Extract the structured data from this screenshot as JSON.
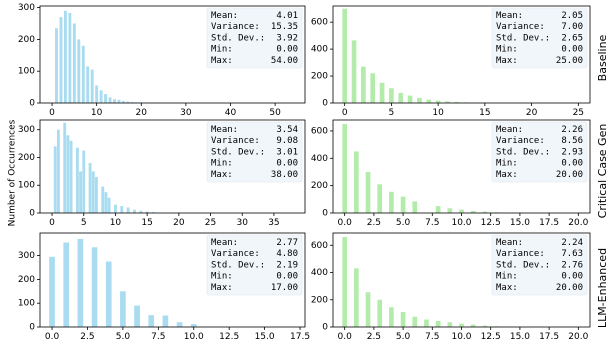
{
  "figure": {
    "ylabel": "Number of Occurrences",
    "row_titles": [
      "Baseline",
      "Critical Case Gen",
      "LLM-Enhanced"
    ],
    "colors": {
      "left": "#a9dcf0",
      "right": "#b3ecaa",
      "stats_bg": "#f1f6fb"
    },
    "stat_labels": [
      "Mean:",
      "Variance:",
      "Std. Dev.:",
      "Min:",
      "Max:"
    ]
  },
  "chart_data": [
    {
      "type": "bar",
      "row": 0,
      "col": 0,
      "xlim": [
        -2.7,
        56.7
      ],
      "ylim": [
        0,
        305
      ],
      "xticks": [
        0,
        10,
        20,
        30,
        40,
        50
      ],
      "xtick_labels": [
        "0",
        "10",
        "20",
        "30",
        "40",
        "50"
      ],
      "yticks": [
        0,
        100,
        200,
        300
      ],
      "ytick_labels": [
        "0",
        "100",
        "200",
        "300"
      ],
      "bar_width": 0.65,
      "x": [
        1,
        2,
        3,
        4,
        5,
        6,
        7,
        8,
        9,
        10,
        11,
        12,
        13,
        14,
        15,
        16,
        17,
        18,
        19,
        20,
        21,
        22,
        23,
        24,
        26
      ],
      "values": [
        235,
        270,
        290,
        283,
        250,
        200,
        180,
        115,
        105,
        55,
        40,
        28,
        18,
        12,
        10,
        6,
        4,
        3,
        2,
        2,
        1,
        1,
        1,
        1,
        1
      ],
      "stats": [
        "4.01",
        "15.35",
        "3.92",
        "0.00",
        "54.00"
      ]
    },
    {
      "type": "bar",
      "row": 0,
      "col": 1,
      "xlim": [
        -1.25,
        26.25
      ],
      "ylim": [
        0,
        720
      ],
      "xticks": [
        0,
        5,
        10,
        15,
        20,
        25
      ],
      "xtick_labels": [
        "0",
        "5",
        "10",
        "15",
        "20",
        "25"
      ],
      "yticks": [
        0,
        200,
        400,
        600
      ],
      "ytick_labels": [
        "0",
        "200",
        "400",
        "600"
      ],
      "bar_width": 0.5,
      "x": [
        0,
        1,
        2,
        3,
        4,
        5,
        6,
        7,
        8,
        9,
        10,
        11,
        12,
        13,
        14,
        15,
        16
      ],
      "values": [
        700,
        465,
        270,
        220,
        150,
        110,
        75,
        55,
        38,
        25,
        18,
        12,
        8,
        5,
        3,
        2,
        1
      ],
      "stats": [
        "2.05",
        "7.00",
        "2.65",
        "0.00",
        "25.00"
      ]
    },
    {
      "type": "bar",
      "row": 1,
      "col": 0,
      "xlim": [
        -1.9,
        39.9
      ],
      "ylim": [
        0,
        335
      ],
      "xticks": [
        0,
        5,
        10,
        15,
        20,
        25,
        30,
        35
      ],
      "xtick_labels": [
        "0",
        "5",
        "10",
        "15",
        "20",
        "25",
        "30",
        "35"
      ],
      "yticks": [
        0,
        100,
        200,
        300
      ],
      "ytick_labels": [
        "0",
        "100",
        "200",
        "300"
      ],
      "bar_width": 0.45,
      "x": [
        0.5,
        1,
        2,
        2.5,
        3,
        4,
        4.5,
        5,
        6,
        6.5,
        7,
        8,
        8.5,
        9,
        10,
        11,
        12,
        13,
        14,
        15,
        16
      ],
      "values": [
        240,
        300,
        325,
        280,
        260,
        235,
        150,
        225,
        180,
        150,
        130,
        95,
        75,
        55,
        30,
        25,
        20,
        12,
        8,
        5,
        3
      ],
      "stats": [
        "3.54",
        "9.08",
        "3.01",
        "0.00",
        "38.00"
      ]
    },
    {
      "type": "bar",
      "row": 1,
      "col": 1,
      "xlim": [
        -1.0,
        21.0
      ],
      "ylim": [
        0,
        680
      ],
      "xticks": [
        0,
        2.5,
        5,
        7.5,
        10,
        12.5,
        15,
        17.5,
        20
      ],
      "xtick_labels": [
        "0.0",
        "2.5",
        "5.0",
        "7.5",
        "10.0",
        "12.5",
        "15.0",
        "17.5",
        "20.0"
      ],
      "yticks": [
        0,
        200,
        400,
        600
      ],
      "ytick_labels": [
        "0",
        "200",
        "400",
        "600"
      ],
      "bar_width": 0.4,
      "x": [
        0,
        1,
        2,
        3,
        4,
        5,
        6,
        8,
        9,
        10,
        11,
        12,
        13
      ],
      "values": [
        650,
        450,
        300,
        210,
        155,
        120,
        85,
        50,
        35,
        25,
        15,
        10,
        5
      ],
      "stats": [
        "2.26",
        "8.56",
        "2.93",
        "0.00",
        "20.00"
      ]
    },
    {
      "type": "bar",
      "row": 2,
      "col": 0,
      "xlim": [
        -0.85,
        17.85
      ],
      "ylim": [
        0,
        395
      ],
      "xticks": [
        0,
        2.5,
        5,
        7.5,
        10,
        12.5,
        15,
        17.5
      ],
      "xtick_labels": [
        "0.0",
        "2.5",
        "5.0",
        "7.5",
        "10.0",
        "12.5",
        "15.0",
        "17.5"
      ],
      "yticks": [
        0,
        100,
        200,
        300
      ],
      "ytick_labels": [
        "0",
        "100",
        "200",
        "300"
      ],
      "bar_width": 0.4,
      "x": [
        0,
        1,
        2,
        3,
        4,
        5,
        6,
        7,
        8,
        9,
        10
      ],
      "values": [
        295,
        355,
        370,
        335,
        275,
        150,
        90,
        50,
        48,
        20,
        12
      ],
      "stats": [
        "2.77",
        "4.80",
        "2.19",
        "0.00",
        "17.00"
      ]
    },
    {
      "type": "bar",
      "row": 2,
      "col": 1,
      "xlim": [
        -1.0,
        21.0
      ],
      "ylim": [
        0,
        690
      ],
      "xticks": [
        0,
        2.5,
        5,
        7.5,
        10,
        12.5,
        15,
        17.5,
        20
      ],
      "xtick_labels": [
        "0.0",
        "2.5",
        "5.0",
        "7.5",
        "10.0",
        "12.5",
        "15.0",
        "17.5",
        "20.0"
      ],
      "yticks": [
        0,
        200,
        400,
        600
      ],
      "ytick_labels": [
        "0",
        "200",
        "400",
        "600"
      ],
      "bar_width": 0.4,
      "x": [
        0,
        1,
        2,
        3,
        4,
        5,
        6,
        7,
        8,
        9,
        10,
        11,
        12,
        13
      ],
      "values": [
        660,
        430,
        255,
        200,
        145,
        110,
        75,
        55,
        45,
        35,
        25,
        18,
        10,
        5
      ],
      "stats": [
        "2.24",
        "7.63",
        "2.76",
        "0.00",
        "20.00"
      ]
    }
  ]
}
